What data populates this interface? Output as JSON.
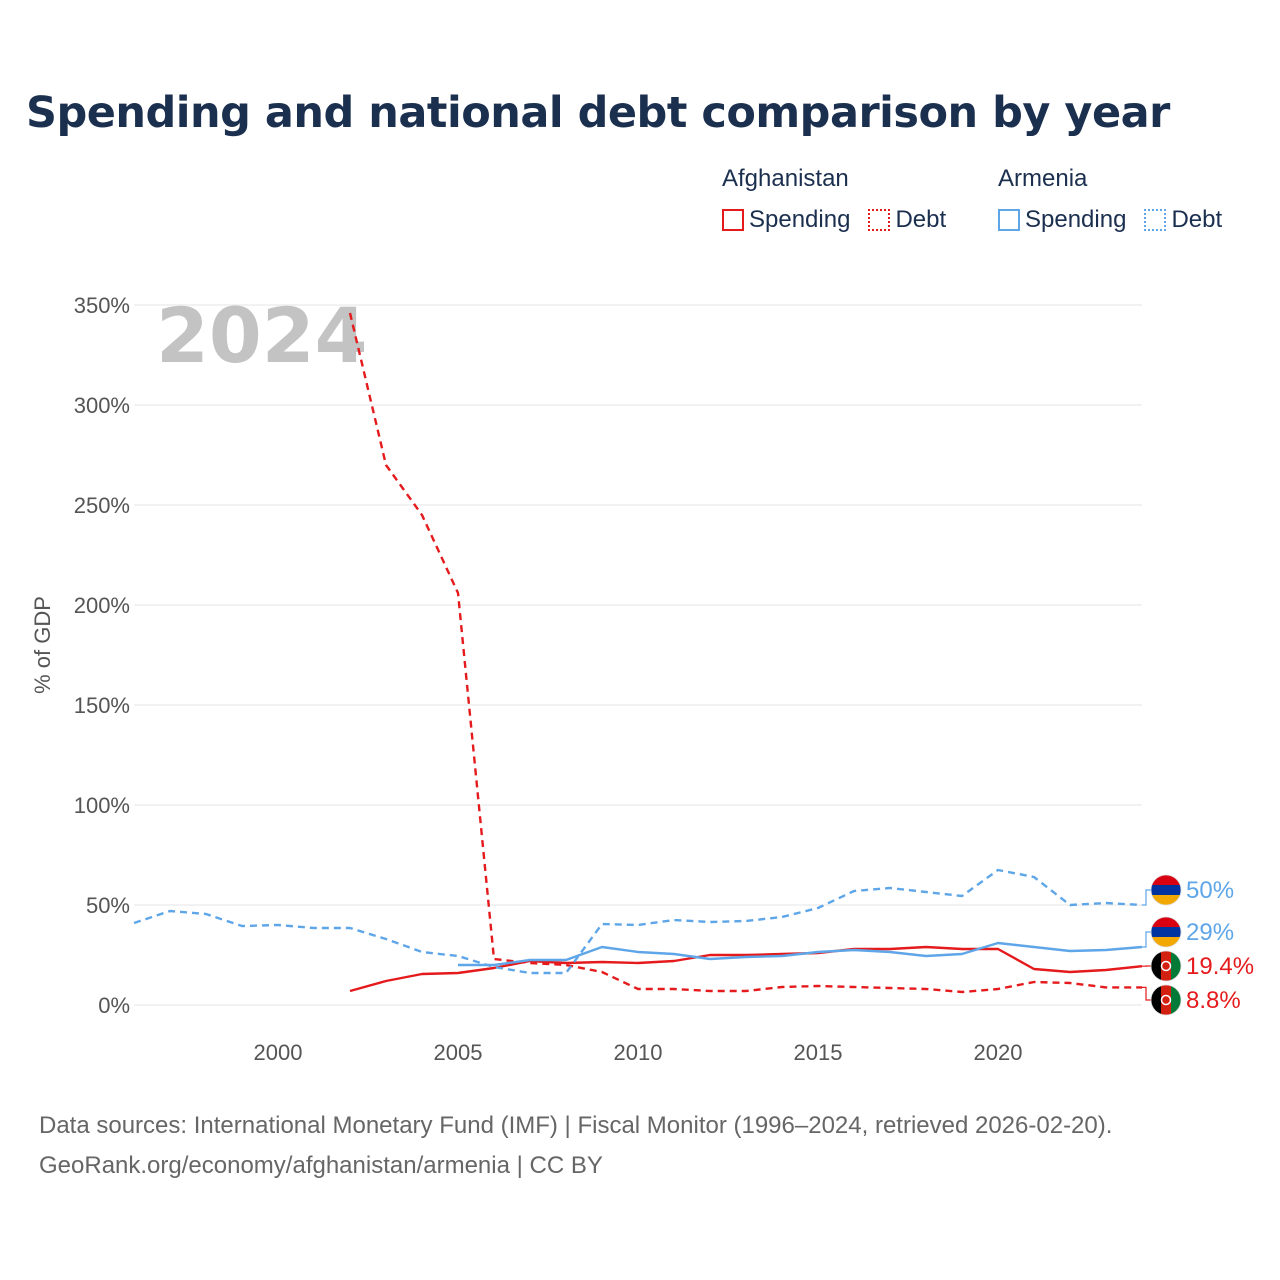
{
  "title": "Spending and national debt comparison by year",
  "legend": {
    "groups": [
      {
        "country": "Afghanistan",
        "spending_label": "Spending",
        "debt_label": "Debt",
        "color": "#e41a1c"
      },
      {
        "country": "Armenia",
        "spending_label": "Spending",
        "debt_label": "Debt",
        "color": "#5ea6e8"
      }
    ]
  },
  "footer": {
    "line1": "Data sources: International Monetary Fund (IMF) | Fiscal Monitor (1996–2024, retrieved 2026-02-20).",
    "line2": "GeoRank.org/economy/afghanistan/armenia | CC BY"
  },
  "chart_data": {
    "type": "line",
    "title": "Spending and national debt comparison by year",
    "current_year": "2024",
    "ylabel": "% of GDP",
    "xlabel": "",
    "xlim": [
      1996,
      2024
    ],
    "ylim": [
      0,
      350
    ],
    "x_ticks": [
      2000,
      2005,
      2010,
      2015,
      2020
    ],
    "y_ticks": [
      0,
      50,
      100,
      150,
      200,
      250,
      300,
      350
    ],
    "y_tick_labels": [
      "0%",
      "50%",
      "100%",
      "150%",
      "200%",
      "250%",
      "300%",
      "350%"
    ],
    "grid": true,
    "series": [
      {
        "name": "Afghanistan Debt",
        "country": "Afghanistan",
        "metric": "Debt",
        "color": "#e41a1c",
        "dash": "dashed",
        "x": [
          2002,
          2003,
          2004,
          2005,
          2006,
          2007,
          2008,
          2009,
          2010,
          2011,
          2012,
          2013,
          2014,
          2015,
          2016,
          2017,
          2018,
          2019,
          2020,
          2021,
          2022,
          2023,
          2024
        ],
        "values": [
          346,
          270,
          245,
          206,
          23,
          21,
          20,
          16.5,
          8,
          8,
          7,
          7,
          9,
          9.5,
          9,
          8.5,
          8,
          6.5,
          8,
          11.5,
          11,
          8.8,
          8.8
        ],
        "end_label": "8.8%"
      },
      {
        "name": "Afghanistan Spending",
        "country": "Afghanistan",
        "metric": "Spending",
        "color": "#e41a1c",
        "dash": "solid",
        "x": [
          2002,
          2003,
          2004,
          2005,
          2006,
          2007,
          2008,
          2009,
          2010,
          2011,
          2012,
          2013,
          2014,
          2015,
          2016,
          2017,
          2018,
          2019,
          2020,
          2021,
          2022,
          2023,
          2024
        ],
        "values": [
          7,
          12,
          15.5,
          16,
          18.5,
          22,
          21,
          21.5,
          21,
          22,
          25,
          25,
          25.5,
          26,
          28,
          28,
          29,
          28,
          28,
          18,
          16.5,
          17.5,
          19.4
        ],
        "end_label": "19.4%"
      },
      {
        "name": "Armenia Debt",
        "country": "Armenia",
        "metric": "Debt",
        "color": "#5ea6e8",
        "dash": "dashed",
        "x": [
          1996,
          1997,
          1998,
          1999,
          2000,
          2001,
          2002,
          2003,
          2004,
          2005,
          2006,
          2007,
          2008,
          2009,
          2010,
          2011,
          2012,
          2013,
          2014,
          2015,
          2016,
          2017,
          2018,
          2019,
          2020,
          2021,
          2022,
          2023,
          2024
        ],
        "values": [
          41,
          47,
          45.5,
          39.5,
          40,
          38.5,
          38.5,
          33,
          26.5,
          24.5,
          19,
          16,
          16,
          40.5,
          40,
          42.5,
          41.5,
          42,
          44,
          48.5,
          57,
          58.5,
          56.5,
          54.5,
          67.5,
          64,
          50,
          51,
          50
        ],
        "end_label": "50%"
      },
      {
        "name": "Armenia Spending",
        "country": "Armenia",
        "metric": "Spending",
        "color": "#5ea6e8",
        "dash": "solid",
        "x": [
          2005,
          2006,
          2007,
          2008,
          2009,
          2010,
          2011,
          2012,
          2013,
          2014,
          2015,
          2016,
          2017,
          2018,
          2019,
          2020,
          2021,
          2022,
          2023,
          2024
        ],
        "values": [
          20,
          20,
          22.5,
          22.5,
          29,
          26.5,
          25.5,
          23,
          24,
          24.5,
          26.5,
          27.5,
          26.5,
          24.5,
          25.5,
          31,
          29,
          27,
          27.5,
          29
        ],
        "end_label": "29%"
      }
    ]
  }
}
